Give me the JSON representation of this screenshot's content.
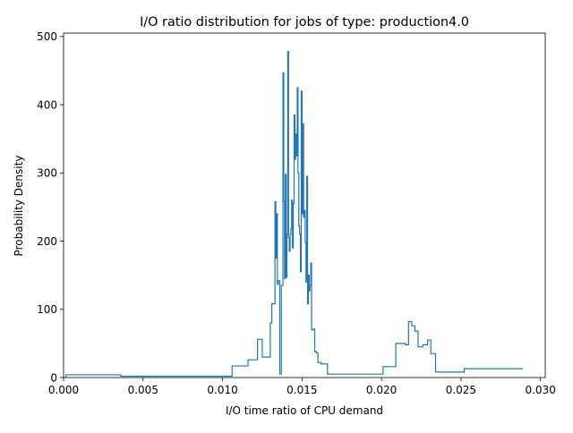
{
  "chart_data": {
    "type": "histogram-step",
    "title": "I/O ratio distribution for jobs of type: production4.0",
    "xlabel": "I/O time ratio of CPU demand",
    "ylabel": "Probability Density",
    "xlim": [
      0.0,
      0.0303
    ],
    "ylim": [
      0,
      505
    ],
    "xticks": [
      0.0,
      0.005,
      0.01,
      0.015,
      0.02,
      0.025,
      0.03
    ],
    "xtick_labels": [
      "0.000",
      "0.005",
      "0.010",
      "0.015",
      "0.020",
      "0.025",
      "0.030"
    ],
    "yticks": [
      0,
      100,
      200,
      300,
      400,
      500
    ],
    "ytick_labels": [
      "0",
      "100",
      "200",
      "300",
      "400",
      "500"
    ],
    "grid": false,
    "legend": "none",
    "line_color": "#1f77b4",
    "bin_edges": [
      0.00015,
      0.0036,
      0.0106,
      0.0116,
      0.0122,
      0.0125,
      0.013,
      0.0131,
      0.0133,
      0.01335,
      0.0134,
      0.01345,
      0.0135,
      0.0136,
      0.0137,
      0.0138,
      0.01385,
      0.0139,
      0.01395,
      0.014,
      0.01405,
      0.0141,
      0.01415,
      0.0142,
      0.01425,
      0.0143,
      0.01435,
      0.0144,
      0.01445,
      0.0145,
      0.01455,
      0.0146,
      0.01465,
      0.0147,
      0.01475,
      0.0148,
      0.01485,
      0.0149,
      0.01495,
      0.015,
      0.01505,
      0.0151,
      0.01515,
      0.0152,
      0.01525,
      0.0153,
      0.01535,
      0.0154,
      0.01545,
      0.0155,
      0.01555,
      0.0156,
      0.0157,
      0.0158,
      0.0159,
      0.016,
      0.0162,
      0.0166,
      0.0173,
      0.0201,
      0.0209,
      0.0215,
      0.0217,
      0.0219,
      0.0221,
      0.0223,
      0.0226,
      0.0229,
      0.0231,
      0.0234,
      0.0252,
      0.0289
    ],
    "densities": [
      4,
      2,
      17,
      26,
      56,
      30,
      80,
      108,
      258,
      175,
      240,
      137,
      142,
      5,
      135,
      447,
      258,
      145,
      298,
      147,
      210,
      478,
      205,
      185,
      210,
      218,
      260,
      190,
      255,
      385,
      320,
      357,
      325,
      425,
      300,
      222,
      210,
      155,
      420,
      240,
      372,
      235,
      245,
      198,
      140,
      295,
      108,
      150,
      127,
      135,
      168,
      70,
      71,
      38,
      36,
      22,
      20,
      5,
      5,
      16,
      50,
      48,
      82,
      76,
      68,
      45,
      48,
      55,
      35,
      8,
      13,
      13
    ]
  }
}
